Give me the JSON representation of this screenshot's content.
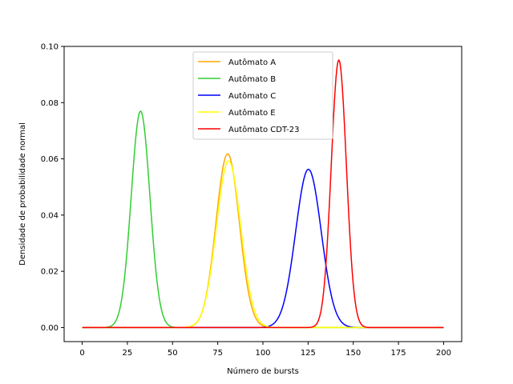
{
  "chart_data": {
    "type": "line",
    "xlabel": "Número de bursts",
    "ylabel": "Densidade de probabilidade normal",
    "xlim": [
      -10,
      210
    ],
    "ylim": [
      -0.005,
      0.1
    ],
    "x_ticks": [
      0,
      25,
      50,
      75,
      100,
      125,
      150,
      175,
      200
    ],
    "x_tick_labels": [
      "0",
      "25",
      "50",
      "75",
      "100",
      "125",
      "150",
      "175",
      "200"
    ],
    "y_ticks": [
      0.0,
      0.02,
      0.04,
      0.06,
      0.08,
      0.1
    ],
    "y_tick_labels": [
      "0.00",
      "0.02",
      "0.04",
      "0.06",
      "0.08",
      "0.10"
    ],
    "x_range": [
      0,
      200
    ],
    "grid": false,
    "legend_position": "upper center",
    "series": [
      {
        "name": "Autômato A",
        "color": "#FFA500",
        "mean": 80.5,
        "std": 6.45,
        "peak": 0.0618
      },
      {
        "name": "Autômato B",
        "color": "#32CD32",
        "mean": 32.3,
        "std": 5.18,
        "peak": 0.077
      },
      {
        "name": "Autômato C",
        "color": "#0000FF",
        "mean": 125.2,
        "std": 7.08,
        "peak": 0.0563
      },
      {
        "name": "Autômato E",
        "color": "#FFFF00",
        "mean": 81.0,
        "std": 6.72,
        "peak": 0.0593
      },
      {
        "name": "Autômato CDT-23",
        "color": "#FF0000",
        "mean": 142.0,
        "std": 4.19,
        "peak": 0.0952
      }
    ]
  }
}
